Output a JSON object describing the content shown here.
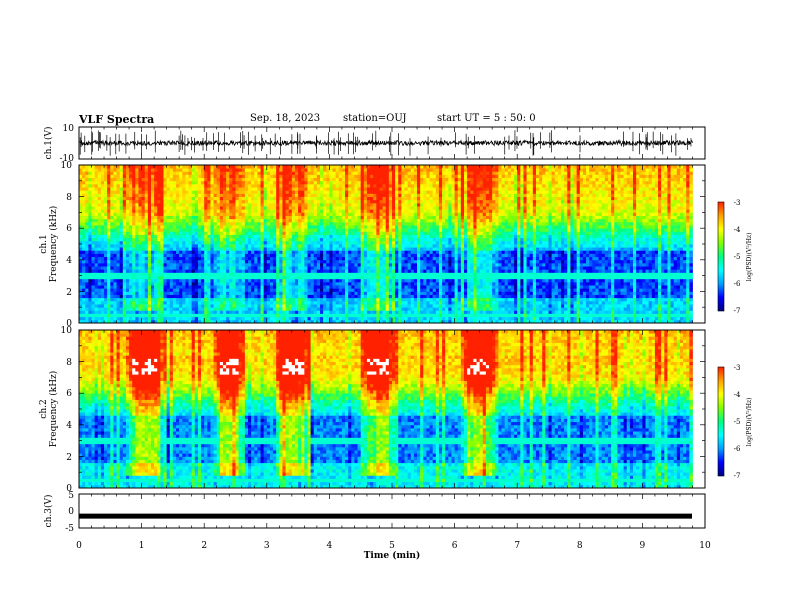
{
  "header": {
    "title": "VLF Spectra",
    "date": "Sep. 18, 2023",
    "station": "station=OUJ",
    "start": "start  UT =  5 : 50: 0"
  },
  "chart_data": [
    {
      "type": "line",
      "name": "ch.1 waveform",
      "ylabel": "ch.1(V)",
      "ylim": [
        -10,
        10
      ],
      "yticks": [
        "10",
        "-10"
      ],
      "x_units": "min",
      "xlim": [
        0,
        10
      ],
      "baseline": 0,
      "amplitude_typical": 1.5
    },
    {
      "type": "heatmap",
      "name": "ch.1 spectrogram",
      "ylabel_top": "ch.1",
      "ylabel": "Frequency (kHz)",
      "ylim": [
        0,
        10
      ],
      "yticks": [
        "0",
        "2",
        "4",
        "6",
        "8",
        "10"
      ],
      "xlim": [
        0,
        9.8
      ],
      "bursts_min": [
        [
          0.85,
          1.25
        ],
        [
          2.25,
          2.55
        ],
        [
          3.25,
          3.6
        ],
        [
          4.6,
          4.95
        ],
        [
          6.2,
          6.6
        ]
      ],
      "colorbar": {
        "label": "log(PSD)(V²/Hz)",
        "ticks": [
          "-3",
          "-4",
          "-5",
          "-6",
          "-7"
        ],
        "range": [
          -7,
          -3
        ]
      }
    },
    {
      "type": "heatmap",
      "name": "ch.2 spectrogram",
      "ylabel_top": "ch.2",
      "ylabel": "Frequency (kHz)",
      "ylim": [
        0,
        10
      ],
      "yticks": [
        "0",
        "2",
        "4",
        "6",
        "8",
        "10"
      ],
      "xlim": [
        0,
        9.8
      ],
      "bursts_min": [
        [
          0.85,
          1.25
        ],
        [
          2.25,
          2.55
        ],
        [
          3.25,
          3.6
        ],
        [
          4.6,
          4.95
        ],
        [
          6.2,
          6.6
        ]
      ],
      "colorbar": {
        "label": "log(PSD)(V²/Hz)",
        "ticks": [
          "-3",
          "-4",
          "-5",
          "-6",
          "-7"
        ],
        "range": [
          -7,
          -3
        ]
      }
    },
    {
      "type": "line",
      "name": "ch.3 waveform",
      "ylabel": "ch.3(V)",
      "ylim": [
        -5,
        5
      ],
      "yticks": [
        "5",
        "0",
        "-5"
      ],
      "xlim": [
        0,
        10
      ],
      "level": -1.5
    }
  ],
  "x_axis": {
    "label": "Time (min)",
    "ticks": [
      "0",
      "1",
      "2",
      "3",
      "4",
      "5",
      "6",
      "7",
      "8",
      "9",
      "10"
    ]
  },
  "colors": {
    "colormap": [
      "#000080",
      "#0000ff",
      "#00a0ff",
      "#00ffff",
      "#00ff80",
      "#80ff00",
      "#ffff00",
      "#ffa000",
      "#ff2000",
      "#ffffff"
    ],
    "ink": "#000000"
  }
}
